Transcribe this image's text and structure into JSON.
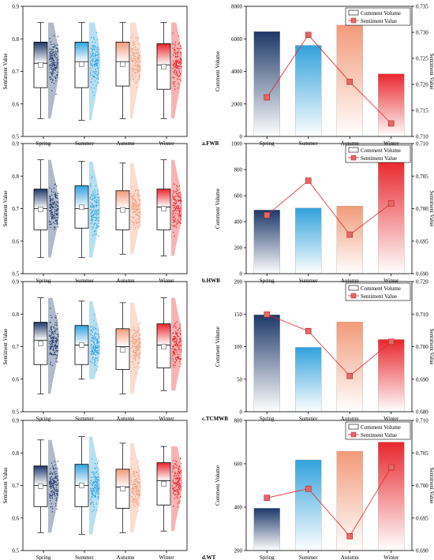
{
  "figure": {
    "colors": {
      "spring_top": "#1d3868",
      "summer_top": "#31a2dc",
      "autumn_top": "#f29a7a",
      "winter_top": "#e8262c",
      "line": "#e8262c",
      "marker": "#e06a6a"
    }
  },
  "chart_data": [
    {
      "type": "raincloud",
      "categories": [
        "Spring",
        "Summer",
        "Autumn",
        "Winter"
      ],
      "ylabel": "Sentiment Value",
      "ylim": [
        0.5,
        0.9
      ],
      "yticks": [
        "0.5",
        "0.6",
        "0.7",
        "0.8",
        "0.9"
      ],
      "boxes": [
        {
          "whisker_low": 0.555,
          "q1": 0.65,
          "median": 0.725,
          "q3": 0.79,
          "whisker_high": 0.85,
          "mean": 0.72
        },
        {
          "whisker_low": 0.55,
          "q1": 0.65,
          "median": 0.73,
          "q3": 0.79,
          "whisker_high": 0.85,
          "mean": 0.722
        },
        {
          "whisker_low": 0.555,
          "q1": 0.655,
          "median": 0.73,
          "q3": 0.79,
          "whisker_high": 0.85,
          "mean": 0.722
        },
        {
          "whisker_low": 0.555,
          "q1": 0.645,
          "median": 0.72,
          "q3": 0.785,
          "whisker_high": 0.85,
          "mean": 0.715
        }
      ]
    },
    {
      "type": "bar+line",
      "panel_label": "a.FWB",
      "categories": [
        "Spring",
        "Summer",
        "Autumn",
        "Winter"
      ],
      "series": [
        {
          "name": "Comment Volume",
          "type": "bar",
          "values": [
            6450,
            5600,
            6850,
            3850
          ]
        },
        {
          "name": "Sentiment Value",
          "type": "line",
          "values": [
            0.7175,
            0.7295,
            0.7205,
            0.7125
          ]
        }
      ],
      "ylabel": "Comment Volume",
      "ylim": [
        0,
        8000
      ],
      "yticks": [
        "0",
        "2000",
        "4000",
        "6000",
        "8000"
      ],
      "y2label": "Sentiment Value",
      "y2lim": [
        0.71,
        0.735
      ],
      "y2ticks": [
        "0.710",
        "0.715",
        "0.720",
        "0.725",
        "0.730",
        "0.735"
      ],
      "legend": "top-right"
    },
    {
      "type": "raincloud",
      "categories": [
        "Spring",
        "Summer",
        "Autumn",
        "Winter"
      ],
      "ylabel": "Sentiment Value",
      "ylim": [
        0.5,
        0.9
      ],
      "yticks": [
        "0.5",
        "0.6",
        "0.7",
        "0.8",
        "0.9"
      ],
      "boxes": [
        {
          "whisker_low": 0.55,
          "q1": 0.635,
          "median": 0.7,
          "q3": 0.76,
          "whisker_high": 0.85,
          "mean": 0.698
        },
        {
          "whisker_low": 0.55,
          "q1": 0.64,
          "median": 0.7,
          "q3": 0.77,
          "whisker_high": 0.845,
          "mean": 0.704
        },
        {
          "whisker_low": 0.56,
          "q1": 0.635,
          "median": 0.7,
          "q3": 0.755,
          "whisker_high": 0.84,
          "mean": 0.696
        },
        {
          "whisker_low": 0.555,
          "q1": 0.635,
          "median": 0.705,
          "q3": 0.76,
          "whisker_high": 0.85,
          "mean": 0.7
        }
      ]
    },
    {
      "type": "bar+line",
      "panel_label": "b.HWB",
      "categories": [
        "Spring",
        "Summer",
        "Autumn",
        "Winter"
      ],
      "series": [
        {
          "name": "Comment Volume",
          "type": "bar",
          "values": [
            490,
            505,
            520,
            870
          ]
        },
        {
          "name": "Sentiment Value",
          "type": "line",
          "values": [
            0.699,
            0.7043,
            0.696,
            0.7008
          ]
        }
      ],
      "ylabel": "Comment Volume",
      "ylim": [
        0,
        1000
      ],
      "yticks": [
        "0",
        "200",
        "400",
        "600",
        "800",
        "1000"
      ],
      "y2label": "Sentiment Value",
      "y2lim": [
        0.69,
        0.71
      ],
      "y2ticks": [
        "0.690",
        "0.695",
        "0.700",
        "0.705",
        "0.710"
      ],
      "legend": "top-right"
    },
    {
      "type": "raincloud",
      "categories": [
        "Spring",
        "Summer",
        "Autumn",
        "Winter"
      ],
      "ylabel": "Sentiment Value",
      "ylim": [
        0.5,
        0.9
      ],
      "yticks": [
        "0.5",
        "0.6",
        "0.7",
        "0.8",
        "0.9"
      ],
      "boxes": [
        {
          "whisker_low": 0.555,
          "q1": 0.645,
          "median": 0.72,
          "q3": 0.775,
          "whisker_high": 0.85,
          "mean": 0.71
        },
        {
          "whisker_low": 0.6,
          "q1": 0.645,
          "median": 0.705,
          "q3": 0.765,
          "whisker_high": 0.84,
          "mean": 0.705
        },
        {
          "whisker_low": 0.555,
          "q1": 0.63,
          "median": 0.7,
          "q3": 0.755,
          "whisker_high": 0.835,
          "mean": 0.69
        },
        {
          "whisker_low": 0.565,
          "q1": 0.635,
          "median": 0.705,
          "q3": 0.77,
          "whisker_high": 0.85,
          "mean": 0.7
        }
      ]
    },
    {
      "type": "bar+line",
      "panel_label": "c.TCMWB",
      "categories": [
        "Spring",
        "Summer",
        "Autumn",
        "Winter"
      ],
      "series": [
        {
          "name": "Comment Volume",
          "type": "bar",
          "values": [
            149,
            99,
            138,
            111
          ]
        },
        {
          "name": "Sentiment Value",
          "type": "line",
          "values": [
            0.7099,
            0.7048,
            0.691,
            0.7015
          ]
        }
      ],
      "ylabel": "Comment Volume",
      "ylim": [
        0,
        200
      ],
      "yticks": [
        "0",
        "50",
        "100",
        "150",
        "200"
      ],
      "y2label": "Sentiment Value",
      "y2lim": [
        0.68,
        0.72
      ],
      "y2ticks": [
        "0.680",
        "0.690",
        "0.700",
        "0.710",
        "0.720"
      ],
      "legend": "top-right"
    },
    {
      "type": "raincloud",
      "categories": [
        "Spring",
        "Summer",
        "Autumn",
        "Winter"
      ],
      "ylabel": "Sentiment Value",
      "ylim": [
        0.5,
        0.9
      ],
      "yticks": [
        "0.5",
        "0.6",
        "0.7",
        "0.8",
        "0.9"
      ],
      "boxes": [
        {
          "whisker_low": 0.555,
          "q1": 0.635,
          "median": 0.7,
          "q3": 0.76,
          "whisker_high": 0.84,
          "mean": 0.698
        },
        {
          "whisker_low": 0.55,
          "q1": 0.635,
          "median": 0.7,
          "q3": 0.765,
          "whisker_high": 0.85,
          "mean": 0.7
        },
        {
          "whisker_low": 0.555,
          "q1": 0.63,
          "median": 0.695,
          "q3": 0.75,
          "whisker_high": 0.83,
          "mean": 0.69
        },
        {
          "whisker_low": 0.56,
          "q1": 0.64,
          "median": 0.715,
          "q3": 0.77,
          "whisker_high": 0.82,
          "mean": 0.705
        }
      ]
    },
    {
      "type": "bar+line",
      "panel_label": "d.WT",
      "categories": [
        "Spring",
        "Summer",
        "Autumn",
        "Winter"
      ],
      "series": [
        {
          "name": "Comment Volume",
          "type": "bar",
          "values": [
            395,
            618,
            658,
            700
          ]
        },
        {
          "name": "Sentiment Value",
          "type": "line",
          "values": [
            0.6981,
            0.6995,
            0.6922,
            0.7028
          ]
        }
      ],
      "ylabel": "Comment Volume",
      "ylim": [
        200,
        800
      ],
      "yticks": [
        "200",
        "400",
        "600",
        "800"
      ],
      "y2label": "Sentiment Value",
      "y2lim": [
        0.69,
        0.71
      ],
      "y2ticks": [
        "0.690",
        "0.695",
        "0.700",
        "0.705",
        "0.710"
      ],
      "legend": "top-right"
    }
  ]
}
